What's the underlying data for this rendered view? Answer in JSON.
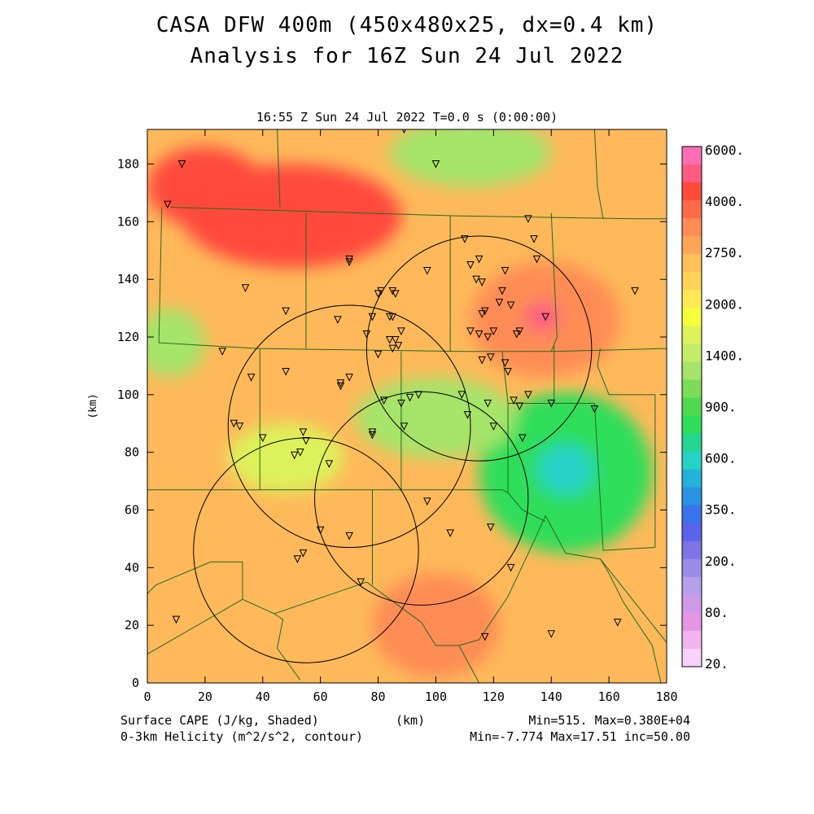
{
  "title_line1": "CASA DFW 400m (450x480x25, dx=0.4 km)",
  "title_line2": "Analysis for 16Z Sun 24 Jul 2022",
  "time_label": "16:55 Z Sun 24 Jul 2022   T=0.0 s (0:00:00)",
  "footer": {
    "field1": "Surface CAPE (J/kg, Shaded)",
    "field2": "0-3km Helicity (m^2/s^2, contour)",
    "xunit": "(km)",
    "stats1": "Min=515. Max=0.380E+04",
    "stats2": "Min=-7.774 Max=17.51 inc=50.00"
  },
  "colorbar": {
    "labels": [
      "6000.",
      "4000.",
      "2750.",
      "2000.",
      "1400.",
      "900.",
      "600.",
      "350.",
      "200.",
      "80.",
      "20."
    ],
    "colors": [
      "#ff6eb4",
      "#ff5a82",
      "#ff4a3c",
      "#ff6a48",
      "#ff8c55",
      "#ffa656",
      "#ffc05a",
      "#ffd258",
      "#ffea55",
      "#f6ff3c",
      "#ddf25a",
      "#c4ec6a",
      "#a6e46a",
      "#7cdc5a",
      "#52d84e",
      "#2ede5a",
      "#26d690",
      "#26d2c6",
      "#24b2da",
      "#2a92e2",
      "#3a72ea",
      "#5a64ea",
      "#7e74e6",
      "#9a8ce8",
      "#b4a0ec",
      "#ce9ae8",
      "#e696e2",
      "#f0b4ee",
      "#f8d2f8"
    ]
  },
  "chart_data": {
    "type": "heatmap",
    "title": "CASA DFW 400m (450x480x25, dx=0.4 km)",
    "subtitle": "Analysis for 16Z Sun 24 Jul 2022",
    "xlabel": "(km)",
    "ylabel": "(km)",
    "xlim": [
      0,
      180
    ],
    "ylim": [
      0,
      192
    ],
    "xticks": [
      0,
      20,
      40,
      60,
      80,
      100,
      120,
      140,
      160,
      180
    ],
    "yticks": [
      0,
      20,
      40,
      60,
      80,
      100,
      120,
      140,
      160,
      180
    ],
    "shaded_field": "Surface CAPE (J/kg)",
    "cape_min": 515,
    "cape_max": 3800,
    "helicity_min": -7.774,
    "helicity_max": 17.51,
    "helicity_contour_interval": 50,
    "cape_regions": [
      {
        "x": 50,
        "y": 162,
        "rx": 38,
        "ry": 18,
        "value": 3300
      },
      {
        "x": 20,
        "y": 172,
        "rx": 20,
        "ry": 14,
        "value": 3300
      },
      {
        "x": 138,
        "y": 126,
        "rx": 26,
        "ry": 20,
        "value": 2900
      },
      {
        "x": 137,
        "y": 127,
        "rx": 6,
        "ry": 5,
        "value": 3800
      },
      {
        "x": 100,
        "y": 20,
        "rx": 22,
        "ry": 18,
        "value": 2800
      },
      {
        "x": 145,
        "y": 73,
        "rx": 30,
        "ry": 28,
        "value": 700
      },
      {
        "x": 145,
        "y": 74,
        "rx": 10,
        "ry": 9,
        "value": 550
      },
      {
        "x": 112,
        "y": 184,
        "rx": 28,
        "ry": 12,
        "value": 1100
      },
      {
        "x": 100,
        "y": 92,
        "rx": 28,
        "ry": 14,
        "value": 1300
      },
      {
        "x": 8,
        "y": 118,
        "rx": 12,
        "ry": 12,
        "value": 1200
      },
      {
        "x": 48,
        "y": 78,
        "rx": 20,
        "ry": 12,
        "value": 1500
      }
    ],
    "radar_rings": [
      {
        "x": 115,
        "y": 116,
        "r": 39
      },
      {
        "x": 70,
        "y": 89,
        "r": 42
      },
      {
        "x": 95,
        "y": 64,
        "r": 37
      },
      {
        "x": 55,
        "y": 46,
        "r": 39
      }
    ],
    "stations": [
      [
        12,
        180
      ],
      [
        89,
        192
      ],
      [
        100,
        180
      ],
      [
        7,
        166
      ],
      [
        70,
        147
      ],
      [
        70,
        146
      ],
      [
        34,
        137
      ],
      [
        48,
        129
      ],
      [
        66,
        126
      ],
      [
        80,
        135
      ],
      [
        81,
        136
      ],
      [
        85,
        136
      ],
      [
        86,
        135
      ],
      [
        97,
        143
      ],
      [
        110,
        154
      ],
      [
        112,
        145
      ],
      [
        115,
        147
      ],
      [
        114,
        140
      ],
      [
        116,
        139
      ],
      [
        122,
        132
      ],
      [
        124,
        143
      ],
      [
        123,
        136
      ],
      [
        126,
        131
      ],
      [
        132,
        161
      ],
      [
        134,
        154
      ],
      [
        135,
        147
      ],
      [
        138,
        127
      ],
      [
        117,
        129
      ],
      [
        116,
        128
      ],
      [
        78,
        127
      ],
      [
        84,
        127
      ],
      [
        85,
        127
      ],
      [
        88,
        122
      ],
      [
        84,
        119
      ],
      [
        86,
        119
      ],
      [
        87,
        117
      ],
      [
        85,
        116
      ],
      [
        76,
        121
      ],
      [
        80,
        114
      ],
      [
        112,
        122
      ],
      [
        115,
        121
      ],
      [
        118,
        120
      ],
      [
        120,
        122
      ],
      [
        116,
        112
      ],
      [
        119,
        113
      ],
      [
        124,
        111
      ],
      [
        125,
        108
      ],
      [
        128,
        121
      ],
      [
        129,
        122
      ],
      [
        26,
        115
      ],
      [
        36,
        106
      ],
      [
        48,
        108
      ],
      [
        67,
        104
      ],
      [
        67,
        103
      ],
      [
        70,
        106
      ],
      [
        78,
        86
      ],
      [
        78,
        87
      ],
      [
        82,
        98
      ],
      [
        89,
        89
      ],
      [
        91,
        99
      ],
      [
        94,
        100
      ],
      [
        88,
        97
      ],
      [
        109,
        100
      ],
      [
        111,
        93
      ],
      [
        118,
        97
      ],
      [
        120,
        89
      ],
      [
        127,
        98
      ],
      [
        129,
        96
      ],
      [
        132,
        100
      ],
      [
        130,
        85
      ],
      [
        140,
        97
      ],
      [
        155,
        95
      ],
      [
        169,
        136
      ],
      [
        30,
        90
      ],
      [
        32,
        89
      ],
      [
        40,
        85
      ],
      [
        54,
        87
      ],
      [
        55,
        84
      ],
      [
        51,
        79
      ],
      [
        53,
        80
      ],
      [
        63,
        76
      ],
      [
        97,
        63
      ],
      [
        105,
        52
      ],
      [
        119,
        54
      ],
      [
        126,
        40
      ],
      [
        60,
        53
      ],
      [
        70,
        51
      ],
      [
        52,
        43
      ],
      [
        54,
        45
      ],
      [
        74,
        35
      ],
      [
        10,
        22
      ],
      [
        140,
        17
      ],
      [
        117,
        16
      ],
      [
        163,
        21
      ]
    ],
    "county_lines": [
      [
        [
          8,
          165
        ],
        [
          108,
          162
        ],
        [
          170,
          161
        ],
        [
          180,
          161
        ]
      ],
      [
        [
          5,
          165
        ],
        [
          4,
          118
        ],
        [
          38,
          116
        ],
        [
          110,
          115
        ],
        [
          140,
          115
        ],
        [
          180,
          116
        ]
      ],
      [
        [
          45,
          192
        ],
        [
          46,
          165
        ]
      ],
      [
        [
          55,
          163
        ],
        [
          55,
          116
        ]
      ],
      [
        [
          105,
          162
        ],
        [
          105,
          115
        ]
      ],
      [
        [
          155,
          192
        ],
        [
          156,
          172
        ],
        [
          158,
          161
        ]
      ],
      [
        [
          140,
          163
        ],
        [
          142,
          120
        ],
        [
          140,
          115
        ]
      ],
      [
        [
          157,
          116
        ],
        [
          156,
          110
        ],
        [
          160,
          100
        ],
        [
          176,
          100
        ]
      ],
      [
        [
          176,
          100
        ],
        [
          176,
          47
        ]
      ],
      [
        [
          141,
          117
        ],
        [
          141,
          97
        ],
        [
          155,
          97
        ],
        [
          158,
          46
        ],
        [
          176,
          47
        ]
      ],
      [
        [
          39,
          116
        ],
        [
          39,
          67
        ]
      ],
      [
        [
          0,
          67
        ],
        [
          78,
          67
        ],
        [
          123,
          67
        ],
        [
          125,
          66
        ]
      ],
      [
        [
          88,
          115
        ],
        [
          88,
          67
        ]
      ],
      [
        [
          123,
          115
        ],
        [
          125,
          97
        ],
        [
          141,
          97
        ]
      ],
      [
        [
          125,
          97
        ],
        [
          125,
          66
        ]
      ],
      [
        [
          78,
          67
        ],
        [
          78,
          34
        ]
      ],
      [
        [
          33,
          42
        ],
        [
          22,
          42
        ],
        [
          3,
          34
        ],
        [
          0,
          31
        ]
      ],
      [
        [
          33,
          42
        ],
        [
          33,
          29
        ],
        [
          0,
          10
        ]
      ],
      [
        [
          33,
          29
        ],
        [
          44,
          24
        ],
        [
          76,
          35
        ]
      ],
      [
        [
          44,
          24
        ],
        [
          47,
          22
        ],
        [
          45,
          12
        ],
        [
          53,
          1
        ]
      ],
      [
        [
          76,
          35
        ],
        [
          95,
          21
        ],
        [
          100,
          13
        ],
        [
          108,
          13
        ],
        [
          115,
          0
        ]
      ],
      [
        [
          108,
          13
        ],
        [
          115,
          15
        ],
        [
          125,
          30
        ],
        [
          133,
          47
        ],
        [
          138,
          58
        ],
        [
          145,
          45
        ],
        [
          157,
          43
        ],
        [
          180,
          14
        ]
      ],
      [
        [
          157,
          43
        ],
        [
          160,
          38
        ],
        [
          165,
          28
        ],
        [
          175,
          13
        ],
        [
          178,
          0
        ]
      ],
      [
        [
          125,
          66
        ],
        [
          130,
          60
        ],
        [
          138,
          56
        ]
      ]
    ]
  }
}
